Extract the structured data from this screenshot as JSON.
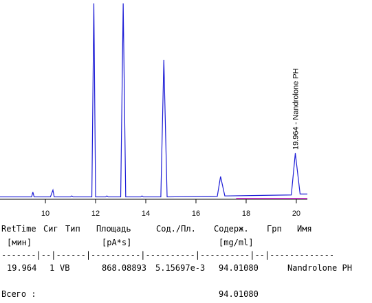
{
  "chart_data": {
    "type": "line",
    "x": [
      8.19,
      9.45,
      9.5,
      9.55,
      10.2,
      10.3,
      10.35,
      11.0,
      11.05,
      11.1,
      11.85,
      11.93,
      12.0,
      12.4,
      12.45,
      12.5,
      13.0,
      13.1,
      13.2,
      13.8,
      13.85,
      13.9,
      14.6,
      14.72,
      14.85,
      16.85,
      16.98,
      17.15,
      19.8,
      19.96,
      20.15,
      20.44
    ],
    "series": [
      {
        "color": "#1c1cd6",
        "values": [
          0.5,
          0.5,
          3,
          0.5,
          0.5,
          4,
          0.5,
          0.5,
          1,
          0.5,
          0.5,
          100,
          0.5,
          0.5,
          1,
          0.5,
          0.5,
          100,
          0.5,
          0.5,
          1,
          0.5,
          0.5,
          71,
          0.5,
          0.8,
          11,
          1,
          1.5,
          23,
          2,
          2
        ]
      }
    ],
    "xlim": [
      8.19,
      20.44
    ],
    "ylim": [
      0,
      100
    ],
    "xticks": [
      10,
      12,
      14,
      16,
      18,
      20
    ],
    "annotations": [
      {
        "text": "19.964 - Nandrolone PH"
      }
    ]
  },
  "report": {
    "header": [
      "RetTime",
      "Сиг",
      "Тип",
      "Площадь",
      "Сод./Пл.",
      "Содерж.",
      "Грп",
      "Имя"
    ],
    "units": [
      "[мин]",
      "[pA*s]",
      "[mg/ml]"
    ],
    "separator": "-------|--|------|----------|----------|----------|--|-------------",
    "rows": [
      [
        "19.964",
        "1",
        "VB",
        "868.08893",
        "5.15697e-3",
        "94.01080",
        "Nandrolone PH"
      ]
    ],
    "total_label": "Всего :",
    "total_value": "94.01080"
  }
}
